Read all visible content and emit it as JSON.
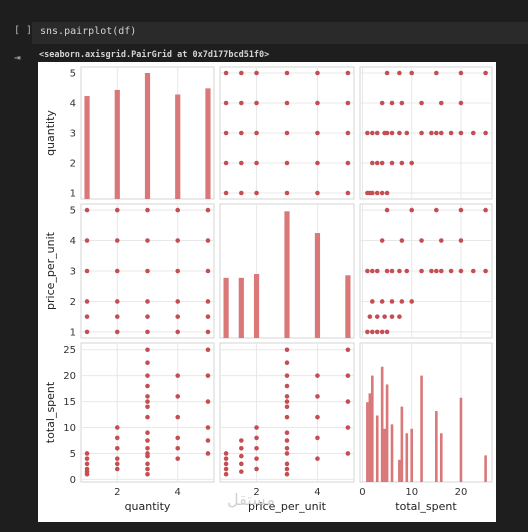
{
  "cell": {
    "run_marker": "[ ]",
    "code": "sns.pairplot(df)",
    "output_icon": "output-toggle-icon",
    "output_text": "<seaborn.axisgrid.PairGrid at 0x7d177bcd51f0>"
  },
  "watermark": "مستقل",
  "colors": {
    "marker": "#c44e52",
    "bar": "#d97779",
    "grid": "#e8e8e8"
  },
  "chart_data": {
    "type": "scatter",
    "variables": [
      "quantity",
      "price_per_unit",
      "total_spent"
    ],
    "ticks": {
      "quantity": [
        2,
        4
      ],
      "price_per_unit": [
        2,
        4
      ],
      "total_spent": [
        0,
        10,
        20
      ],
      "quantity_y": [
        1,
        2,
        3,
        4,
        5
      ],
      "price_per_unit_y": [
        1,
        2,
        3,
        4,
        5
      ],
      "total_spent_y": [
        0,
        5,
        10,
        15,
        20,
        25
      ]
    },
    "ranges": {
      "quantity": [
        0.8,
        5.2
      ],
      "price_per_unit": [
        0.8,
        5.2
      ],
      "total_spent": [
        -0.5,
        26.3
      ]
    },
    "hist": {
      "quantity": {
        "bins": [
          [
            1,
            3.35
          ],
          [
            2,
            3.55
          ],
          [
            3,
            4.1
          ],
          [
            4,
            3.4
          ],
          [
            5,
            3.6
          ]
        ],
        "max": 4.1
      },
      "price_per_unit": {
        "bins": [
          [
            1,
            2.35
          ],
          [
            1.5,
            2.35
          ],
          [
            2,
            2.5
          ],
          [
            3,
            4.95
          ],
          [
            4,
            4.1
          ],
          [
            5,
            2.45
          ]
        ],
        "max": 5.0
      },
      "total_spent": {
        "bins": [
          [
            1,
            1.8
          ],
          [
            1.5,
            2.0
          ],
          [
            2,
            2.4
          ],
          [
            3,
            1.5
          ],
          [
            4,
            2.6
          ],
          [
            4.5,
            1.2
          ],
          [
            5,
            2.2
          ],
          [
            6,
            1.3
          ],
          [
            7.5,
            0.5
          ],
          [
            8,
            1.7
          ],
          [
            9,
            1.1
          ],
          [
            10,
            1.2
          ],
          [
            12,
            2.4
          ],
          [
            15,
            1.6
          ],
          [
            16,
            1.1
          ],
          [
            20,
            1.9
          ],
          [
            25,
            0.6
          ]
        ],
        "max": 3.0
      }
    },
    "points": [
      {
        "quantity": 1,
        "price_per_unit": 1,
        "total_spent": 1
      },
      {
        "quantity": 1,
        "price_per_unit": 1.5,
        "total_spent": 1.5
      },
      {
        "quantity": 1,
        "price_per_unit": 2,
        "total_spent": 2
      },
      {
        "quantity": 1,
        "price_per_unit": 3,
        "total_spent": 3
      },
      {
        "quantity": 1,
        "price_per_unit": 4,
        "total_spent": 4
      },
      {
        "quantity": 1,
        "price_per_unit": 5,
        "total_spent": 5
      },
      {
        "quantity": 2,
        "price_per_unit": 1,
        "total_spent": 2
      },
      {
        "quantity": 2,
        "price_per_unit": 1.5,
        "total_spent": 3
      },
      {
        "quantity": 2,
        "price_per_unit": 2,
        "total_spent": 4
      },
      {
        "quantity": 2,
        "price_per_unit": 3,
        "total_spent": 6
      },
      {
        "quantity": 2,
        "price_per_unit": 4,
        "total_spent": 8
      },
      {
        "quantity": 2,
        "price_per_unit": 5,
        "total_spent": 10
      },
      {
        "quantity": 3,
        "price_per_unit": 1,
        "total_spent": 3
      },
      {
        "quantity": 3,
        "price_per_unit": 1.5,
        "total_spent": 4.5
      },
      {
        "quantity": 3,
        "price_per_unit": 2,
        "total_spent": 6
      },
      {
        "quantity": 3,
        "price_per_unit": 3,
        "total_spent": 9
      },
      {
        "quantity": 3,
        "price_per_unit": 4,
        "total_spent": 12
      },
      {
        "quantity": 3,
        "price_per_unit": 5,
        "total_spent": 15
      },
      {
        "quantity": 3,
        "price_per_unit": 3,
        "total_spent": 1
      },
      {
        "quantity": 3,
        "price_per_unit": 3,
        "total_spent": 2
      },
      {
        "quantity": 3,
        "price_per_unit": 3,
        "total_spent": 5
      },
      {
        "quantity": 3,
        "price_per_unit": 3,
        "total_spent": 7.5
      },
      {
        "quantity": 3,
        "price_per_unit": 3,
        "total_spent": 14
      },
      {
        "quantity": 3,
        "price_per_unit": 3,
        "total_spent": 16
      },
      {
        "quantity": 3,
        "price_per_unit": 3,
        "total_spent": 18
      },
      {
        "quantity": 3,
        "price_per_unit": 3,
        "total_spent": 20
      },
      {
        "quantity": 3,
        "price_per_unit": 3,
        "total_spent": 22.5
      },
      {
        "quantity": 3,
        "price_per_unit": 3,
        "total_spent": 25
      },
      {
        "quantity": 4,
        "price_per_unit": 1,
        "total_spent": 4
      },
      {
        "quantity": 4,
        "price_per_unit": 1.5,
        "total_spent": 6
      },
      {
        "quantity": 4,
        "price_per_unit": 2,
        "total_spent": 8
      },
      {
        "quantity": 4,
        "price_per_unit": 3,
        "total_spent": 12
      },
      {
        "quantity": 4,
        "price_per_unit": 4,
        "total_spent": 16
      },
      {
        "quantity": 4,
        "price_per_unit": 5,
        "total_spent": 20
      },
      {
        "quantity": 5,
        "price_per_unit": 1,
        "total_spent": 5
      },
      {
        "quantity": 5,
        "price_per_unit": 1.5,
        "total_spent": 7.5
      },
      {
        "quantity": 5,
        "price_per_unit": 2,
        "total_spent": 10
      },
      {
        "quantity": 5,
        "price_per_unit": 3,
        "total_spent": 15
      },
      {
        "quantity": 5,
        "price_per_unit": 4,
        "total_spent": 20
      },
      {
        "quantity": 5,
        "price_per_unit": 5,
        "total_spent": 25
      }
    ]
  }
}
